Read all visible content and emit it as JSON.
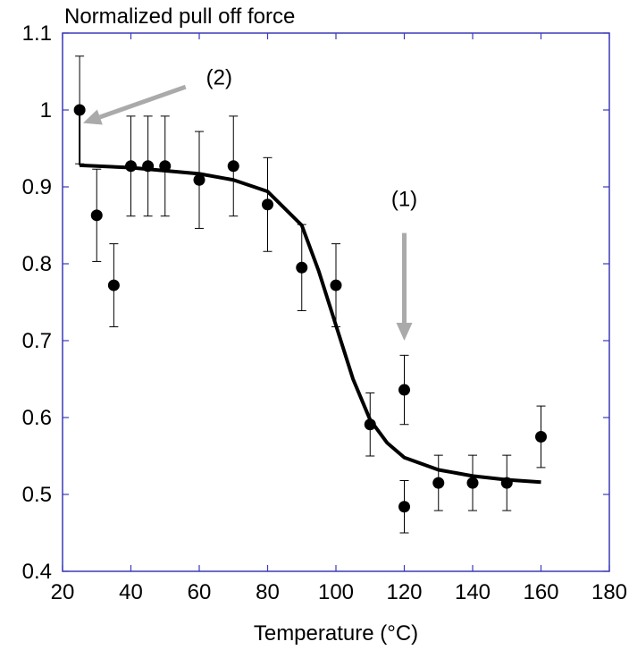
{
  "chart_data": {
    "type": "scatter",
    "title": "",
    "ylabel": "Normalized pull off force",
    "xlabel": "Temperature (°C)",
    "xlim": [
      20,
      180
    ],
    "ylim": [
      0.4,
      1.1
    ],
    "x_ticks": [
      "20",
      "40",
      "60",
      "80",
      "100",
      "120",
      "140",
      "160",
      "180"
    ],
    "y_ticks": [
      "0.4",
      "0.5",
      "0.6",
      "0.7",
      "0.8",
      "0.9",
      "1",
      "1.1"
    ],
    "grid": false,
    "legend": "none",
    "colors": {
      "frame": "#3a3ab8",
      "points": "#000000",
      "fit": "#000000",
      "annotation_arrow": "#aaaaaa"
    },
    "series": [
      {
        "kind": "points_with_error_bars",
        "points": [
          {
            "x": 25,
            "y": 1.0,
            "err": 0.07
          },
          {
            "x": 30,
            "y": 0.863,
            "err": 0.06
          },
          {
            "x": 35,
            "y": 0.772,
            "err": 0.054
          },
          {
            "x": 40,
            "y": 0.927,
            "err": 0.065
          },
          {
            "x": 45,
            "y": 0.927,
            "err": 0.065
          },
          {
            "x": 50,
            "y": 0.927,
            "err": 0.065
          },
          {
            "x": 60,
            "y": 0.909,
            "err": 0.063
          },
          {
            "x": 70,
            "y": 0.927,
            "err": 0.065
          },
          {
            "x": 80,
            "y": 0.877,
            "err": 0.061
          },
          {
            "x": 90,
            "y": 0.795,
            "err": 0.056
          },
          {
            "x": 100,
            "y": 0.772,
            "err": 0.054
          },
          {
            "x": 110,
            "y": 0.591,
            "err": 0.041
          },
          {
            "x": 120,
            "y": 0.636,
            "err": 0.045
          },
          {
            "x": 120,
            "y": 0.484,
            "err": 0.034
          },
          {
            "x": 130,
            "y": 0.515,
            "err": 0.036
          },
          {
            "x": 140,
            "y": 0.515,
            "err": 0.036
          },
          {
            "x": 150,
            "y": 0.515,
            "err": 0.036
          },
          {
            "x": 160,
            "y": 0.575,
            "err": 0.04
          }
        ]
      },
      {
        "kind": "fit_curve",
        "points": [
          {
            "x": 25,
            "y": 0.928
          },
          {
            "x": 40,
            "y": 0.925
          },
          {
            "x": 60,
            "y": 0.917
          },
          {
            "x": 70,
            "y": 0.909
          },
          {
            "x": 80,
            "y": 0.894
          },
          {
            "x": 90,
            "y": 0.85
          },
          {
            "x": 95,
            "y": 0.79
          },
          {
            "x": 100,
            "y": 0.72
          },
          {
            "x": 105,
            "y": 0.65
          },
          {
            "x": 110,
            "y": 0.597
          },
          {
            "x": 115,
            "y": 0.567
          },
          {
            "x": 120,
            "y": 0.548
          },
          {
            "x": 130,
            "y": 0.532
          },
          {
            "x": 140,
            "y": 0.524
          },
          {
            "x": 150,
            "y": 0.519
          },
          {
            "x": 160,
            "y": 0.516
          }
        ]
      }
    ],
    "annotations": [
      {
        "label": "(1)",
        "arrow_target": {
          "x": 120,
          "y": 0.7
        },
        "arrow_from": {
          "x": 120,
          "y": 0.84
        },
        "text_at": {
          "x": 120,
          "y": 0.875
        }
      },
      {
        "label": "(2)",
        "arrow_target": {
          "x": 26,
          "y": 0.983
        },
        "arrow_from": {
          "x": 56,
          "y": 1.03
        },
        "text_at": {
          "x": 62,
          "y": 1.033
        }
      }
    ]
  }
}
